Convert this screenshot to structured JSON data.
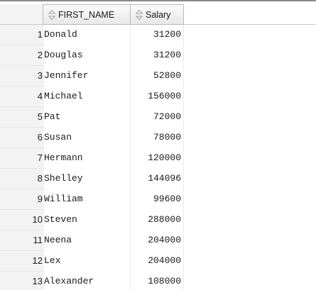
{
  "grid": {
    "columns": [
      {
        "label": "FIRST_NAME",
        "icon": "sort-icon"
      },
      {
        "label": "Salary",
        "icon": "sort-icon"
      }
    ],
    "rows": [
      {
        "num": "1",
        "first_name": "Donald",
        "salary": "31200"
      },
      {
        "num": "2",
        "first_name": "Douglas",
        "salary": "31200"
      },
      {
        "num": "3",
        "first_name": "Jennifer",
        "salary": "52800"
      },
      {
        "num": "4",
        "first_name": "Michael",
        "salary": "156000"
      },
      {
        "num": "5",
        "first_name": "Pat",
        "salary": "72000"
      },
      {
        "num": "6",
        "first_name": "Susan",
        "salary": "78000"
      },
      {
        "num": "7",
        "first_name": "Hermann",
        "salary": "120000"
      },
      {
        "num": "8",
        "first_name": "Shelley",
        "salary": "144096"
      },
      {
        "num": "9",
        "first_name": "William",
        "salary": "99600"
      },
      {
        "num": "10",
        "first_name": "Steven",
        "salary": "288000"
      },
      {
        "num": "11",
        "first_name": "Neena",
        "salary": "204000"
      },
      {
        "num": "12",
        "first_name": "Lex",
        "salary": "204000"
      },
      {
        "num": "13",
        "first_name": "Alexander",
        "salary": "108000"
      }
    ]
  },
  "colors": {
    "header_border": "#b9b9b9",
    "row_header_bg": "#f3f3f3",
    "text": "#1a1a1a"
  }
}
